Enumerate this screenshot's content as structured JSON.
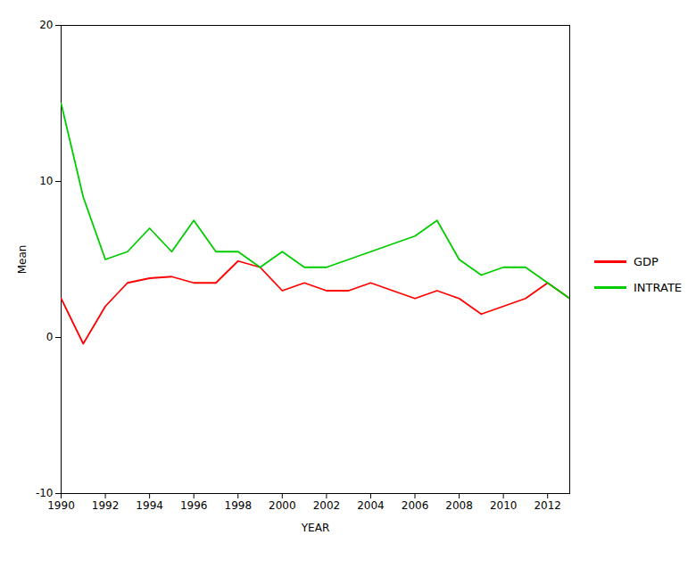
{
  "chart_data": {
    "type": "line",
    "x": [
      1990,
      1991,
      1992,
      1993,
      1994,
      1995,
      1996,
      1997,
      1998,
      1999,
      2000,
      2001,
      2002,
      2003,
      2004,
      2005,
      2006,
      2007,
      2008,
      2009,
      2010,
      2011,
      2012,
      2013
    ],
    "series": [
      {
        "name": "GDP",
        "color": "#ff0000",
        "values": [
          2.5,
          -0.4,
          2.0,
          3.5,
          3.8,
          3.9,
          3.5,
          3.5,
          4.9,
          4.5,
          3.0,
          3.5,
          3.0,
          3.0,
          3.5,
          3.0,
          2.5,
          3.0,
          2.5,
          1.5,
          2.0,
          2.5,
          3.5,
          2.5
        ]
      },
      {
        "name": "INTRATE",
        "color": "#00cc00",
        "values": [
          15.0,
          9.0,
          5.0,
          5.5,
          7.0,
          5.5,
          7.5,
          5.5,
          5.5,
          4.5,
          5.5,
          4.5,
          4.5,
          5.0,
          5.5,
          6.0,
          6.5,
          7.5,
          5.0,
          4.0,
          4.5,
          4.5,
          3.5,
          2.5
        ]
      }
    ],
    "xlabel": "YEAR",
    "ylabel": "Mean",
    "xlim": [
      1990,
      2013
    ],
    "ylim": [
      -10,
      20
    ],
    "xticks": [
      1990,
      1992,
      1994,
      1996,
      1998,
      2000,
      2002,
      2004,
      2006,
      2008,
      2010,
      2012
    ],
    "yticks": [
      -10,
      0,
      10,
      20
    ],
    "grid": false,
    "legend": "right"
  }
}
